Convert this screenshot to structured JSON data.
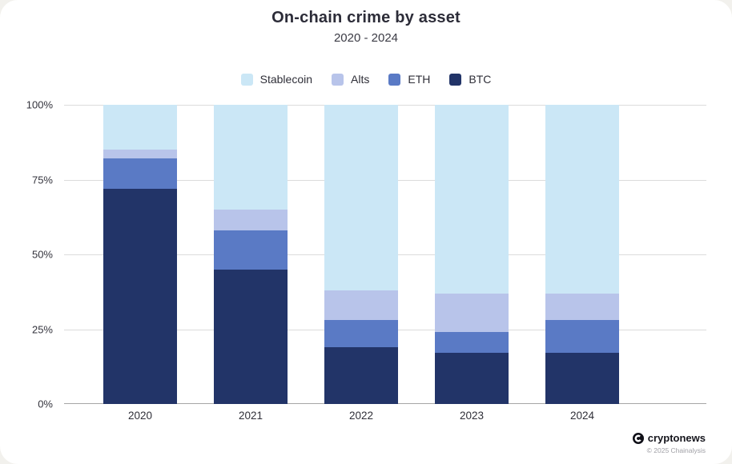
{
  "header": {
    "title": "On-chain crime by asset",
    "subtitle": "2020 - 2024"
  },
  "chart_data": {
    "type": "bar",
    "stacked": true,
    "title": "On-chain crime by asset",
    "subtitle": "2020 - 2024",
    "categories": [
      "2020",
      "2021",
      "2022",
      "2023",
      "2024"
    ],
    "series": [
      {
        "name": "BTC",
        "color": "#223468",
        "values": [
          72,
          45,
          19,
          17,
          17
        ]
      },
      {
        "name": "ETH",
        "color": "#5a7ac5",
        "values": [
          10,
          13,
          9,
          7,
          11
        ]
      },
      {
        "name": "Alts",
        "color": "#b8c4ea",
        "values": [
          3,
          7,
          10,
          13,
          9
        ]
      },
      {
        "name": "Stablecoin",
        "color": "#cbe7f6",
        "values": [
          15,
          35,
          62,
          63,
          63
        ]
      }
    ],
    "legend": [
      "Stablecoin",
      "Alts",
      "ETH",
      "BTC"
    ],
    "legend_position": "top-center",
    "grid": true,
    "ylim": [
      0,
      100
    ],
    "y_axis": {
      "ticks": [
        {
          "value": 100,
          "label": "100%"
        },
        {
          "value": 75,
          "label": "75%"
        },
        {
          "value": 50,
          "label": "50%"
        },
        {
          "value": 25,
          "label": "25%"
        },
        {
          "value": 0,
          "label": "0%"
        }
      ]
    },
    "xlabel": "",
    "ylabel": ""
  },
  "footer": {
    "brand": "cryptonews",
    "attribution": "© 2025 Chainalysis"
  },
  "colors": {
    "background": "#f2f1ed",
    "card": "#ffffff",
    "gridline": "#dcdcdc",
    "axis": "#a6a6a6",
    "btc": "#223468",
    "eth": "#5a7ac5",
    "alts": "#b8c4ea",
    "stablecoin": "#cbe7f6"
  }
}
